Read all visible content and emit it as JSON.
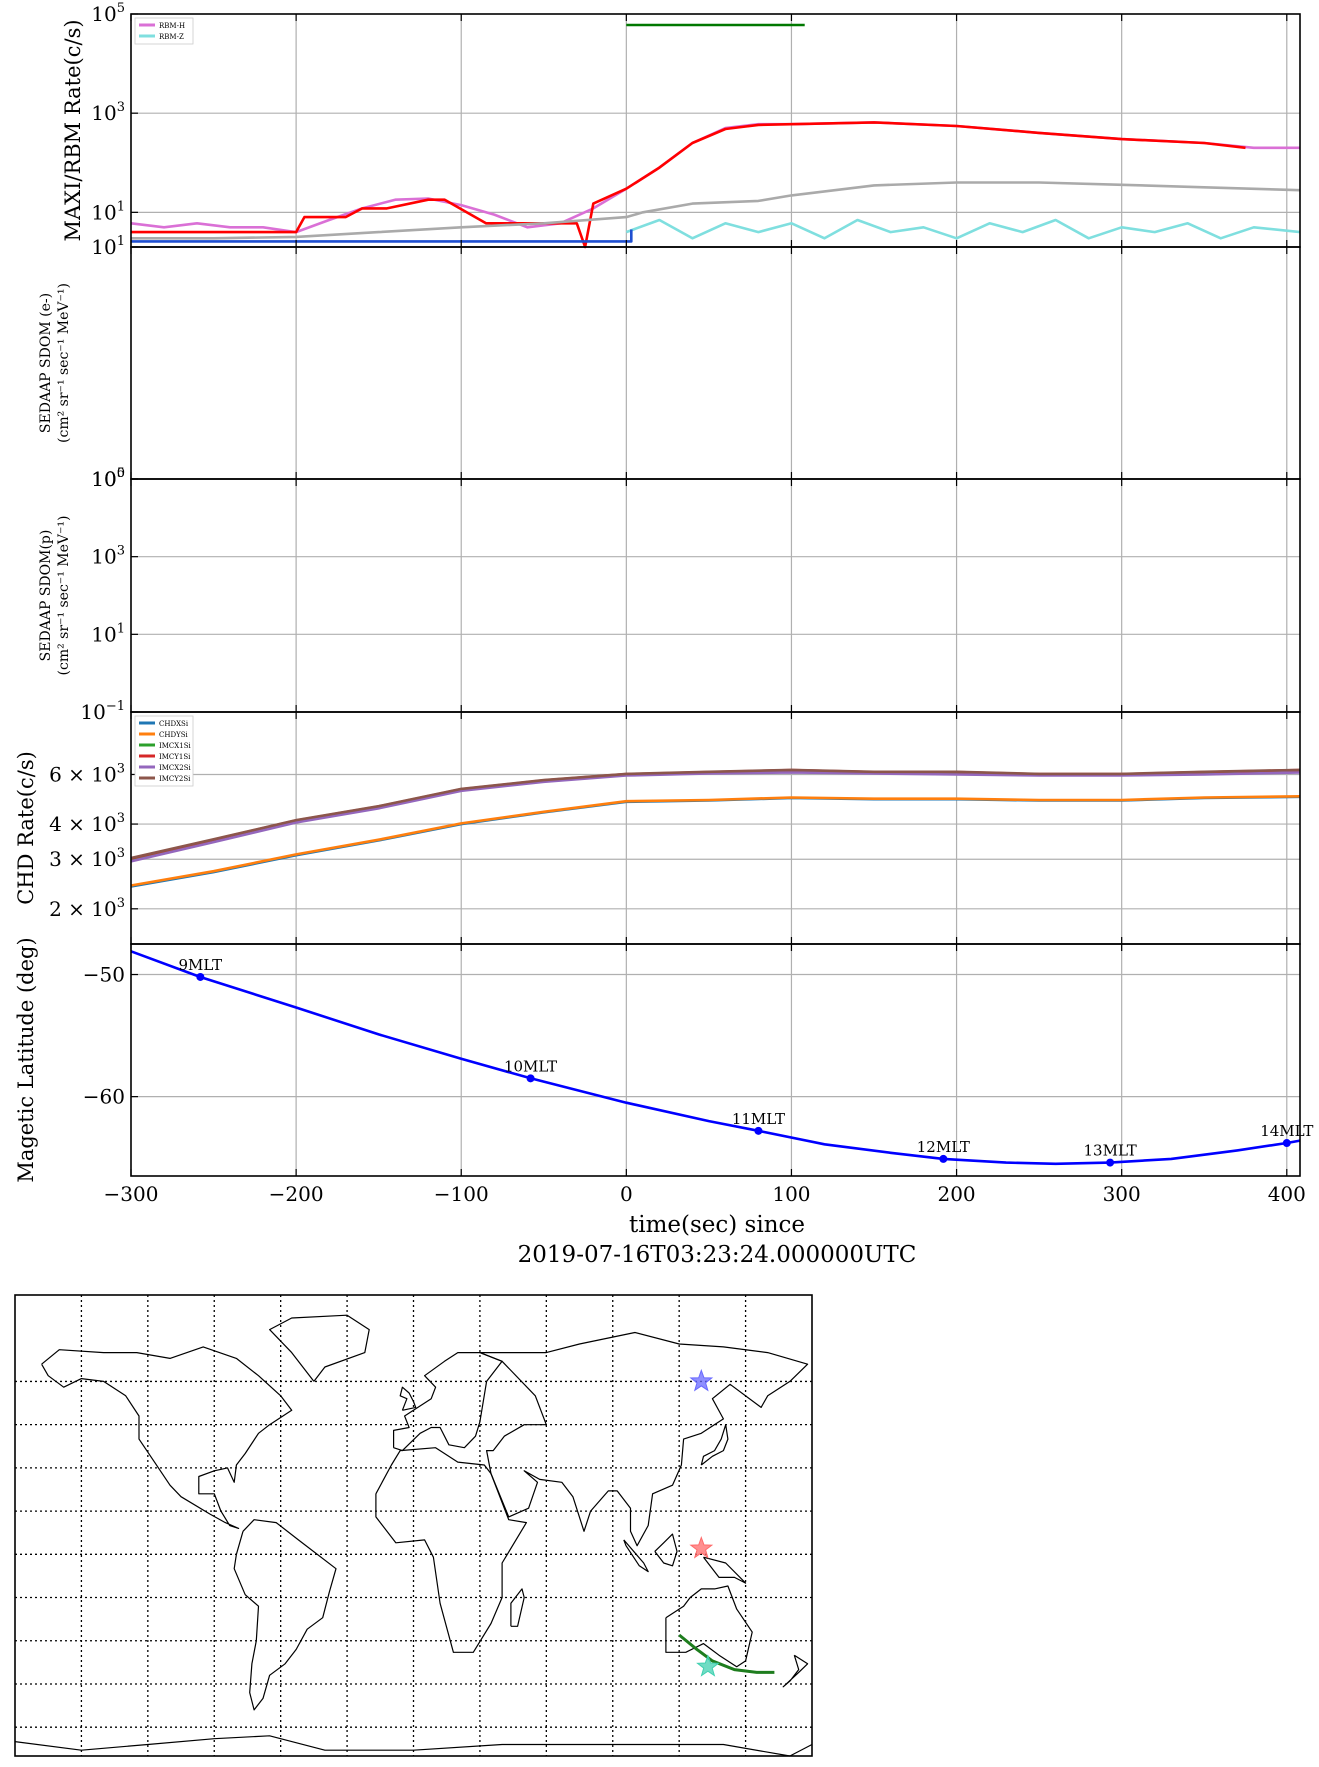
{
  "figure": {
    "xlabel": "time(sec) since",
    "xlabel_time": "2019-07-16T03:23:24.000000UTC"
  },
  "chart_data": [
    {
      "type": "line",
      "panel": "maxi_rbm",
      "ylabel": "MAXI/RBM Rate(c/s)",
      "yscale": "log",
      "ylim": [
        2,
        100000
      ],
      "yticks": [
        {
          "v": 10,
          "b": "10",
          "e": "1"
        },
        {
          "v": 1000,
          "b": "10",
          "e": "3"
        },
        {
          "v": 100000,
          "b": "10",
          "e": "5"
        }
      ],
      "xlim": [
        -300,
        408
      ],
      "grid": true,
      "legend_position": "upper-left",
      "legend": [
        {
          "label": "RBM-H",
          "color": "#da70d6"
        },
        {
          "label": "RBM-Z",
          "color": "#7fdfdf"
        }
      ],
      "series": [
        {
          "name": "RBM-H",
          "color": "#da70d6",
          "x": [
            -300,
            -280,
            -260,
            -240,
            -220,
            -200,
            -180,
            -160,
            -140,
            -120,
            -100,
            -80,
            -60,
            -40,
            -20,
            0,
            20,
            40,
            60,
            80,
            100,
            150,
            200,
            250,
            300,
            350,
            380,
            408
          ],
          "y": [
            6,
            5,
            6,
            5,
            5,
            4,
            7,
            12,
            18,
            19,
            14,
            9,
            5,
            6,
            12,
            30,
            80,
            250,
            500,
            600,
            600,
            650,
            550,
            400,
            300,
            250,
            200,
            200
          ]
        },
        {
          "name": "",
          "color": "#ff0000",
          "x": [
            -300,
            -200,
            -195,
            -170,
            -160,
            -145,
            -120,
            -110,
            -85,
            -60,
            -30,
            -25,
            -20,
            0,
            20,
            40,
            60,
            80,
            100,
            150,
            200,
            250,
            300,
            350,
            375
          ],
          "y": [
            4,
            4,
            8,
            8,
            12,
            12,
            18,
            18,
            6,
            6,
            6,
            2,
            15,
            30,
            80,
            250,
            480,
            580,
            600,
            650,
            550,
            400,
            300,
            250,
            200
          ]
        },
        {
          "name": "",
          "color": "#aaaaaa",
          "x": [
            -300,
            -250,
            -200,
            -150,
            -100,
            -50,
            0,
            10,
            40,
            80,
            100,
            150,
            200,
            250,
            300,
            350,
            408
          ],
          "y": [
            3,
            3,
            3.2,
            4,
            5,
            6,
            8,
            10,
            15,
            17,
            22,
            35,
            40,
            40,
            36,
            32,
            28
          ]
        },
        {
          "name": "RBM-Z",
          "color": "#7fdfdf",
          "x": [
            0,
            20,
            40,
            60,
            80,
            100,
            120,
            140,
            160,
            180,
            200,
            220,
            240,
            260,
            280,
            300,
            320,
            340,
            360,
            380,
            408
          ],
          "y": [
            4,
            7,
            3,
            6,
            4,
            6,
            3,
            7,
            4,
            5,
            3,
            6,
            4,
            7,
            3,
            5,
            4,
            6,
            3,
            5,
            4
          ]
        },
        {
          "name": "",
          "color": "#1f4fd0",
          "x": [
            -300,
            3,
            3
          ],
          "y": [
            2.6,
            2.6,
            4.5
          ]
        },
        {
          "name": "",
          "color": "#007800",
          "x": [
            0,
            108
          ],
          "y": [
            60000,
            60000
          ]
        }
      ]
    },
    {
      "type": "line",
      "panel": "sedaap_e",
      "ylabel": "SEDAAP SDOM (e-)",
      "ylabel_units": "(cm² sr⁻¹ sec⁻¹ MeV⁻¹)",
      "yscale": "log",
      "ylim": [
        1,
        10
      ],
      "yticks": [
        {
          "v": 1,
          "b": "10",
          "e": "0"
        },
        {
          "v": 10,
          "b": "10",
          "e": "1"
        }
      ],
      "xlim": [
        -300,
        408
      ],
      "grid": true,
      "series": []
    },
    {
      "type": "line",
      "panel": "sedaap_p",
      "ylabel": "SEDAAP SDOM(p)",
      "ylabel_units": "(cm² sr⁻¹ sec⁻¹ MeV⁻¹)",
      "yscale": "log",
      "ylim": [
        0.1,
        100000
      ],
      "yticks": [
        {
          "v": 0.1,
          "b": "10",
          "e": "−1"
        },
        {
          "v": 10,
          "b": "10",
          "e": "1"
        },
        {
          "v": 1000,
          "b": "10",
          "e": "3"
        },
        {
          "v": 100000,
          "b": "10",
          "e": "5"
        }
      ],
      "xlim": [
        -300,
        408
      ],
      "grid": true,
      "series": []
    },
    {
      "type": "line",
      "panel": "chd",
      "ylabel": "CHD Rate(c/s)",
      "yscale": "log",
      "ylim": [
        1500,
        10000
      ],
      "yticks": [
        {
          "v": 2000,
          "b": "2 × 10",
          "e": "3"
        },
        {
          "v": 3000,
          "b": "3 × 10",
          "e": "3"
        },
        {
          "v": 4000,
          "b": "4 × 10",
          "e": "3"
        },
        {
          "v": 6000,
          "b": "6 × 10",
          "e": "3"
        }
      ],
      "xlim": [
        -300,
        408
      ],
      "grid": true,
      "legend_position": "upper-left",
      "legend": [
        {
          "label": "CHDXSi",
          "color": "#1f77b4"
        },
        {
          "label": "CHDYSi",
          "color": "#ff7f0e"
        },
        {
          "label": "IMCX1Si",
          "color": "#2ca02c"
        },
        {
          "label": "IMCY1Si",
          "color": "#d62728"
        },
        {
          "label": "IMCX2Si",
          "color": "#9467bd"
        },
        {
          "label": "IMCY2Si",
          "color": "#8c564b"
        }
      ],
      "series": [
        {
          "name": "CHDXSi",
          "color": "#1f77b4",
          "x": [
            -300,
            -250,
            -200,
            -150,
            -100,
            -50,
            0,
            50,
            100,
            150,
            200,
            250,
            300,
            350,
            408
          ],
          "y": [
            2400,
            2700,
            3100,
            3500,
            4000,
            4400,
            4800,
            4850,
            4950,
            4900,
            4900,
            4850,
            4850,
            4950,
            5000
          ]
        },
        {
          "name": "CHDYSi",
          "color": "#ff7f0e",
          "x": [
            -300,
            -250,
            -200,
            -150,
            -100,
            -50,
            0,
            50,
            100,
            150,
            200,
            250,
            300,
            350,
            408
          ],
          "y": [
            2420,
            2720,
            3120,
            3520,
            4020,
            4420,
            4820,
            4870,
            4970,
            4920,
            4920,
            4870,
            4870,
            4970,
            5020
          ]
        },
        {
          "name": "IMCX1Si",
          "color": "#2ca02c",
          "x": [
            -300,
            -250,
            -200,
            -150,
            -100,
            -50,
            0,
            50,
            100,
            150,
            200,
            250,
            300,
            350,
            408
          ],
          "y": [
            3000,
            3500,
            4100,
            4600,
            5300,
            5700,
            6000,
            6100,
            6200,
            6100,
            6100,
            6000,
            6000,
            6100,
            6200
          ]
        },
        {
          "name": "IMCY1Si",
          "color": "#d62728",
          "x": [
            -300,
            -250,
            -200,
            -150,
            -100,
            -50,
            0,
            50,
            100,
            150,
            200,
            250,
            300,
            350,
            408
          ],
          "y": [
            3020,
            3520,
            4120,
            4620,
            5320,
            5720,
            6020,
            6120,
            6220,
            6120,
            6120,
            6020,
            6020,
            6120,
            6220
          ]
        },
        {
          "name": "IMCX2Si",
          "color": "#9467bd",
          "x": [
            -300,
            -250,
            -200,
            -150,
            -100,
            -50,
            0,
            50,
            100,
            150,
            200,
            250,
            300,
            350,
            408
          ],
          "y": [
            2950,
            3450,
            4050,
            4550,
            5250,
            5650,
            5950,
            6050,
            6100,
            6050,
            6000,
            5950,
            5950,
            6000,
            6100
          ]
        },
        {
          "name": "IMCY2Si",
          "color": "#8c564b",
          "x": [
            -300,
            -250,
            -200,
            -150,
            -100,
            -50,
            0,
            50,
            100,
            150,
            200,
            250,
            300,
            350,
            408
          ],
          "y": [
            3030,
            3530,
            4130,
            4630,
            5330,
            5730,
            6030,
            6130,
            6230,
            6130,
            6130,
            6030,
            6030,
            6130,
            6230
          ]
        }
      ]
    },
    {
      "type": "line",
      "panel": "maglat",
      "ylabel": "Magetic Latitude  (deg)",
      "yscale": "linear",
      "ylim": [
        -66.5,
        -47.5
      ],
      "yticks": [
        {
          "v": -60,
          "b": "−60",
          "e": ""
        },
        {
          "v": -50,
          "b": "−50",
          "e": ""
        }
      ],
      "xlim": [
        -300,
        408
      ],
      "xticks": [
        -300,
        -200,
        -100,
        0,
        100,
        200,
        300,
        400
      ],
      "xtick_labels": [
        "−300",
        "−200",
        "−100",
        "0",
        "100",
        "200",
        "300",
        "400"
      ],
      "grid": true,
      "series": [
        {
          "name": "",
          "color": "#0000ff",
          "x": [
            -300,
            -258,
            -200,
            -150,
            -100,
            -58,
            0,
            50,
            80,
            120,
            160,
            192,
            230,
            260,
            293,
            330,
            370,
            400,
            408
          ],
          "y": [
            -48.1,
            -50.2,
            -52.7,
            -54.9,
            -56.9,
            -58.5,
            -60.5,
            -62.0,
            -62.8,
            -63.9,
            -64.6,
            -65.1,
            -65.4,
            -65.5,
            -65.4,
            -65.1,
            -64.4,
            -63.8,
            -63.6
          ]
        }
      ],
      "annotations": [
        {
          "x": -258,
          "y": -50.2,
          "label": "9MLT"
        },
        {
          "x": -58,
          "y": -58.5,
          "label": "10MLT"
        },
        {
          "x": 80,
          "y": -62.8,
          "label": "11MLT"
        },
        {
          "x": 192,
          "y": -65.1,
          "label": "12MLT"
        },
        {
          "x": 293,
          "y": -65.4,
          "label": "13MLT"
        },
        {
          "x": 400,
          "y": -63.8,
          "label": "14MLT"
        }
      ]
    }
  ],
  "map": {
    "projection": "world",
    "markers": [
      {
        "symbol": "star",
        "color": "#6a6aff"
      },
      {
        "symbol": "star",
        "color": "#ff6a6a"
      },
      {
        "symbol": "star",
        "color": "#40d0b0"
      }
    ],
    "track_color": "#1e7d1e"
  }
}
